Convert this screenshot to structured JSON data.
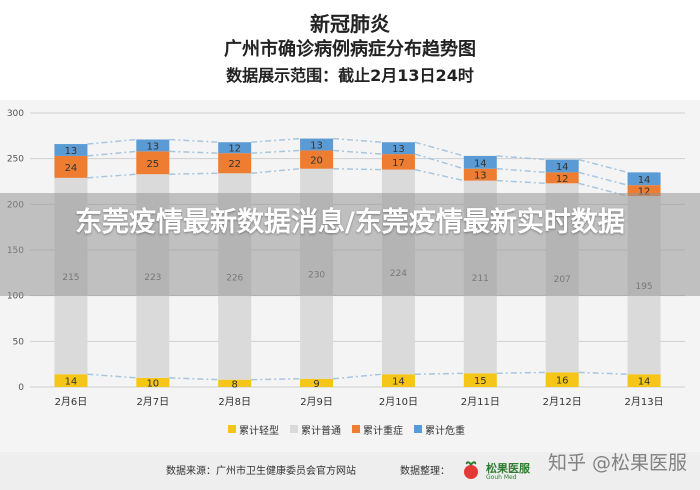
{
  "header": {
    "line1": "新冠肺炎",
    "line2": "广州市确诊病例病症分布趋势图",
    "line3": "数据展示范围：截止2月13日24时"
  },
  "overlay": {
    "headline": "东莞疫情最新数据消息/东莞疫情最新实时数据"
  },
  "footer": {
    "source": "数据来源：广州市卫生健康委员会官方网站",
    "compiler": "数据整理：",
    "logo_text": "松果医服",
    "logo_sub": "Gouh Med",
    "watermark": "知乎 @松果医服"
  },
  "chart_data": {
    "type": "bar",
    "stacked": true,
    "categories": [
      "2月6日",
      "2月7日",
      "2月8日",
      "2月9日",
      "2月10日",
      "2月11日",
      "2月12日",
      "2月13日"
    ],
    "series": [
      {
        "name": "累计轻型",
        "color": "#f5c518",
        "values": [
          14,
          10,
          8,
          9,
          14,
          15,
          16,
          14
        ]
      },
      {
        "name": "累计普通",
        "color": "#dadada",
        "values": [
          215,
          223,
          226,
          230,
          224,
          211,
          207,
          195
        ]
      },
      {
        "name": "累计重症",
        "color": "#ee7d31",
        "values": [
          24,
          25,
          22,
          20,
          17,
          13,
          12,
          12
        ]
      },
      {
        "name": "累计危重",
        "color": "#5b9bd5",
        "values": [
          13,
          13,
          12,
          13,
          13,
          14,
          14,
          14
        ]
      }
    ],
    "ylim": [
      0,
      300
    ],
    "yticks": [
      0,
      50,
      100,
      150,
      200,
      250,
      300
    ],
    "trend_line_colors": [
      "#f5c518",
      "#dadada",
      "#ee7d31",
      "#5b9bd5"
    ],
    "grid": true,
    "legend_position": "bottom"
  }
}
